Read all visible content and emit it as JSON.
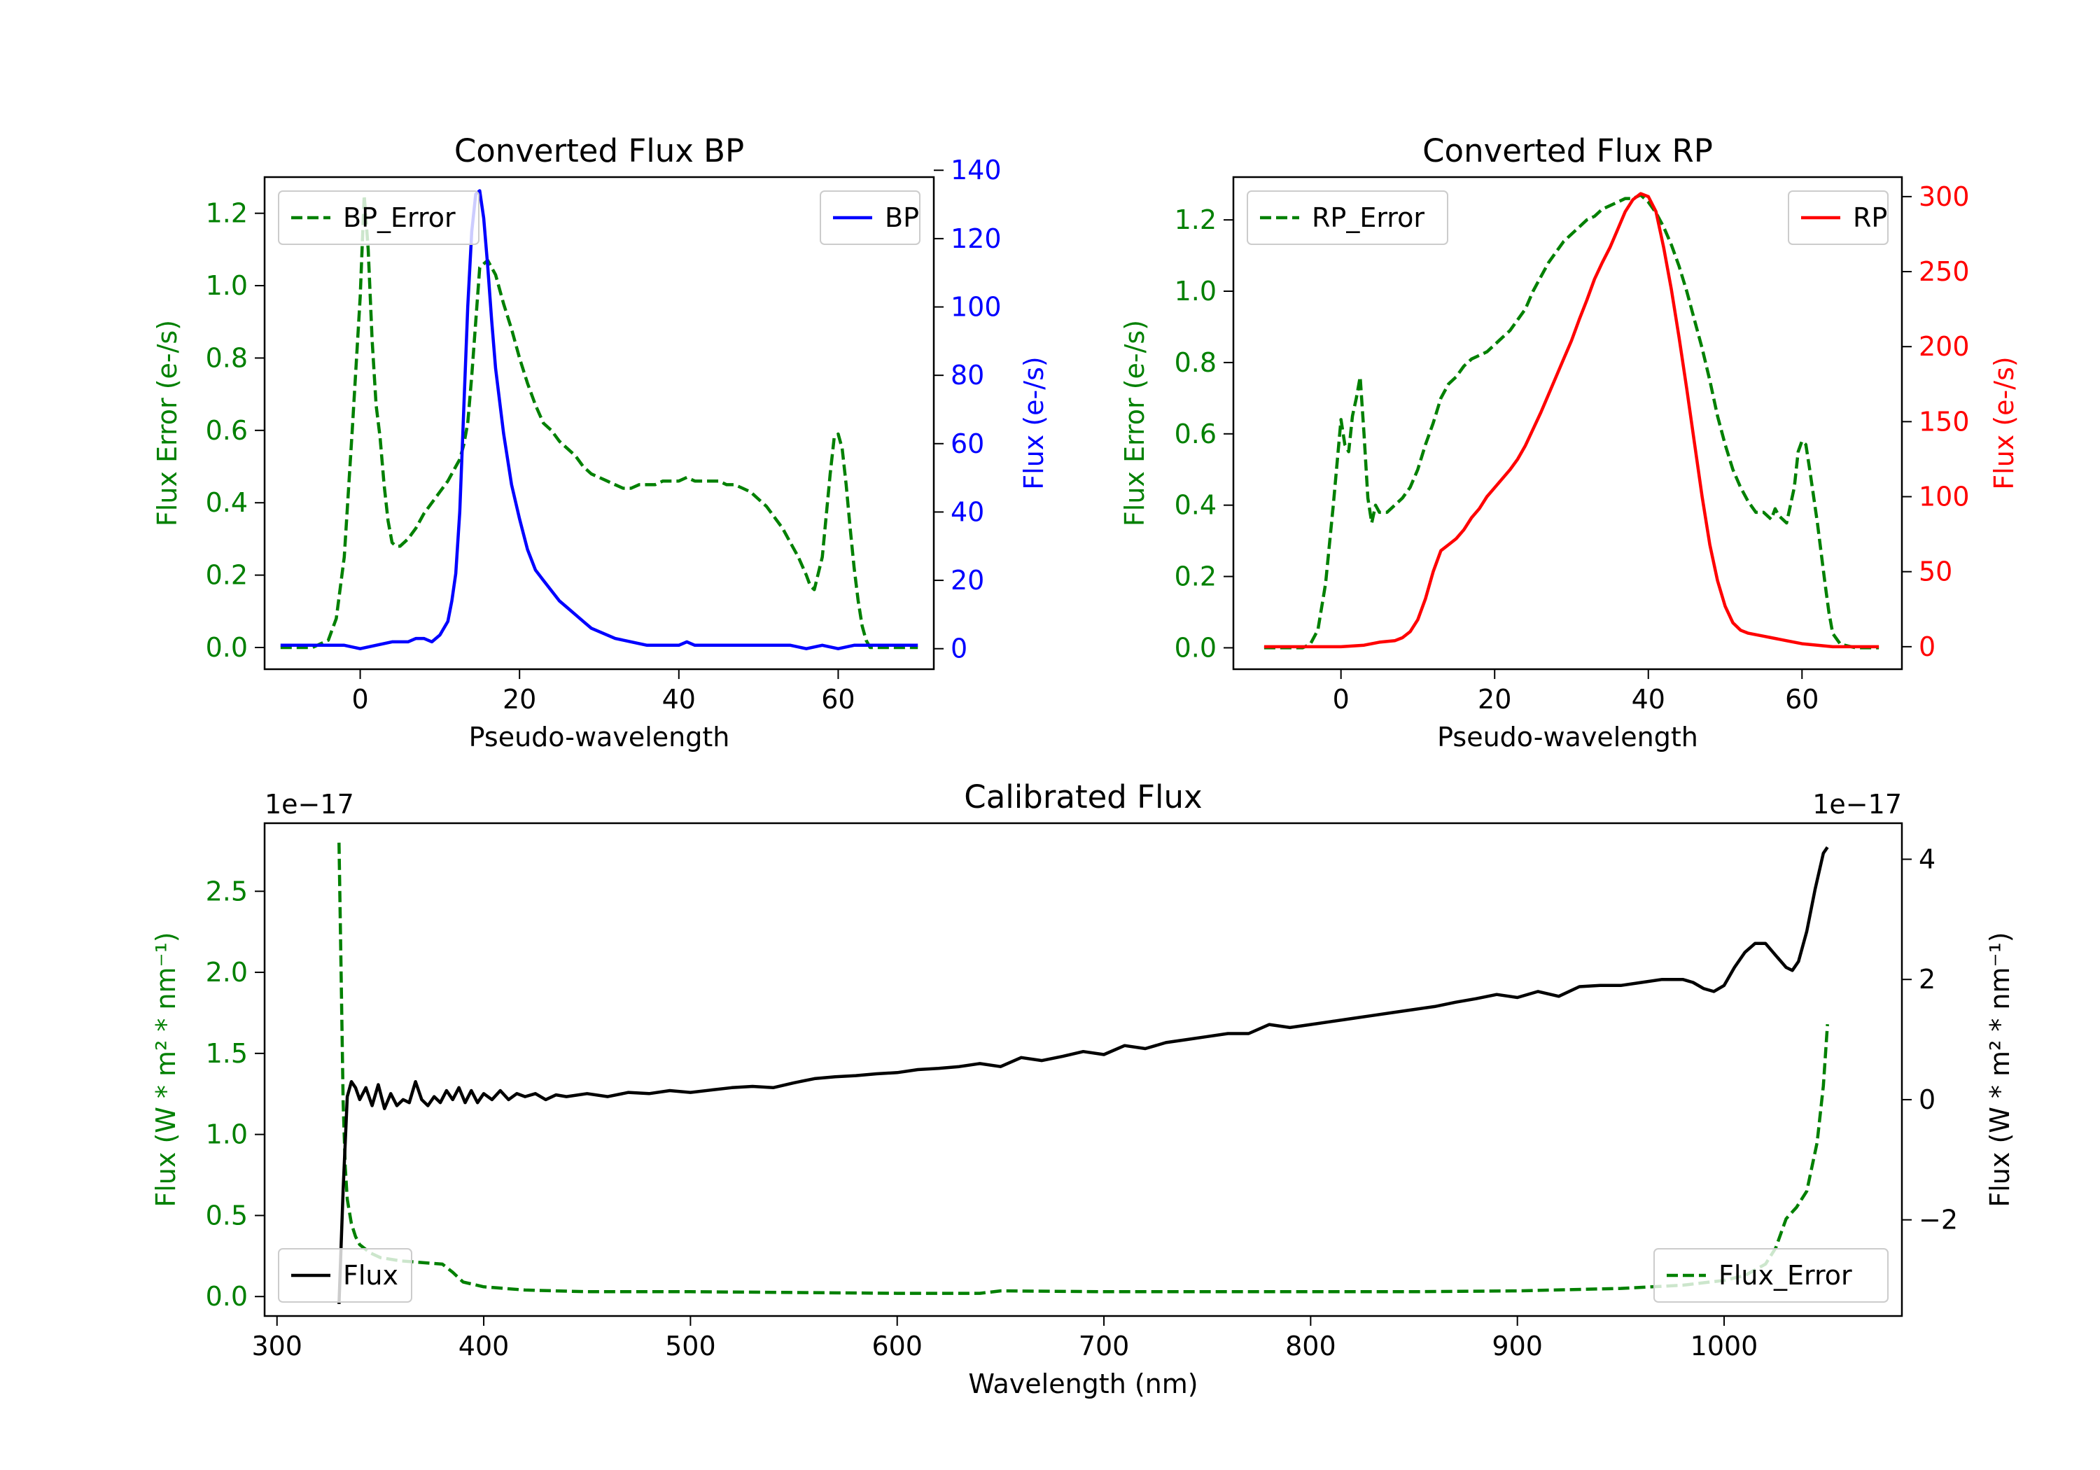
{
  "chart_data": [
    {
      "type": "line",
      "title": "Converted Flux BP",
      "xlabel": "Pseudo-wavelength",
      "ylabel": "Flux Error (e-/s)",
      "ylabel_right": "Flux (e-/s)",
      "xlim": [
        -12,
        72
      ],
      "ylim": [
        -0.06,
        1.3
      ],
      "ylim_right": [
        -6,
        138
      ],
      "xticks": [
        0,
        20,
        40,
        60
      ],
      "yticks": [
        0.0,
        0.2,
        0.4,
        0.6,
        0.8,
        1.0,
        1.2
      ],
      "yticks_right": [
        0,
        20,
        40,
        60,
        80,
        100,
        120,
        140
      ],
      "grid": false,
      "legend": [
        {
          "label": "BP_Error",
          "placement": "upper-left"
        },
        {
          "label": "BP",
          "placement": "upper-right"
        }
      ],
      "series": [
        {
          "name": "BP_Error",
          "axis": "left",
          "color": "#008000",
          "style": "dashed",
          "x": [
            -10,
            -6,
            -4,
            -3,
            -2,
            -1,
            0,
            0.5,
            1,
            1.5,
            2,
            2.5,
            3,
            3.5,
            4,
            4.5,
            5,
            6,
            7,
            8,
            9,
            10,
            11,
            12,
            12.5,
            13,
            13.5,
            14,
            14.5,
            15,
            16,
            17,
            18,
            19,
            20,
            21,
            22,
            23,
            24,
            25,
            26,
            27,
            28,
            29,
            30,
            31,
            32,
            33,
            34,
            35,
            36,
            37,
            38,
            39,
            40,
            41,
            42,
            43,
            44,
            45,
            46,
            47,
            48,
            49,
            50,
            51,
            52,
            53,
            54,
            55,
            56,
            56.5,
            57,
            58,
            59,
            59.5,
            60,
            60.5,
            61,
            61.5,
            62,
            62.5,
            63,
            63.5,
            64,
            65,
            66,
            68,
            70
          ],
          "y": [
            0.0,
            0.0,
            0.02,
            0.08,
            0.25,
            0.6,
            0.97,
            1.25,
            1.1,
            0.85,
            0.67,
            0.58,
            0.45,
            0.35,
            0.29,
            0.28,
            0.28,
            0.3,
            0.33,
            0.37,
            0.4,
            0.43,
            0.46,
            0.5,
            0.52,
            0.56,
            0.62,
            0.75,
            0.9,
            1.05,
            1.07,
            1.03,
            0.95,
            0.88,
            0.8,
            0.73,
            0.67,
            0.62,
            0.6,
            0.57,
            0.55,
            0.53,
            0.5,
            0.48,
            0.47,
            0.46,
            0.45,
            0.44,
            0.44,
            0.45,
            0.45,
            0.45,
            0.46,
            0.46,
            0.46,
            0.47,
            0.46,
            0.46,
            0.46,
            0.46,
            0.45,
            0.45,
            0.44,
            0.43,
            0.41,
            0.39,
            0.36,
            0.33,
            0.29,
            0.25,
            0.2,
            0.17,
            0.16,
            0.25,
            0.48,
            0.58,
            0.59,
            0.55,
            0.45,
            0.33,
            0.22,
            0.13,
            0.06,
            0.02,
            0.0,
            0.0,
            0.0,
            0.0,
            0.0
          ]
        },
        {
          "name": "BP",
          "axis": "right",
          "color": "#0000ff",
          "style": "solid",
          "x": [
            -10,
            -6,
            -2,
            0,
            2,
            4,
            6,
            7,
            8,
            9,
            10,
            11,
            11.5,
            12,
            12.5,
            13,
            13.5,
            14,
            14.5,
            15,
            15.5,
            16,
            16.5,
            17,
            18,
            19,
            20,
            21,
            22,
            23,
            24,
            25,
            26,
            27,
            28,
            29,
            30,
            31,
            32,
            34,
            36,
            38,
            40,
            41,
            42,
            44,
            46,
            48,
            50,
            52,
            54,
            56,
            58,
            60,
            62,
            64,
            66,
            68,
            70
          ],
          "y": [
            1,
            1,
            1,
            0,
            1,
            2,
            2,
            3,
            3,
            2,
            4,
            8,
            14,
            22,
            40,
            70,
            100,
            122,
            133,
            134,
            126,
            112,
            96,
            82,
            63,
            48,
            38,
            29,
            23,
            20,
            17,
            14,
            12,
            10,
            8,
            6,
            5,
            4,
            3,
            2,
            1,
            1,
            1,
            2,
            1,
            1,
            1,
            1,
            1,
            1,
            1,
            0,
            1,
            0,
            1,
            1,
            1,
            1,
            1
          ]
        }
      ]
    },
    {
      "type": "line",
      "title": "Converted Flux RP",
      "xlabel": "Pseudo-wavelength",
      "ylabel": "Flux Error (e-/s)",
      "ylabel_right": "Flux (e-/s)",
      "xlim": [
        -14,
        73
      ],
      "ylim": [
        -0.06,
        1.32
      ],
      "ylim_right": [
        -15,
        313
      ],
      "xticks": [
        0,
        20,
        40,
        60
      ],
      "yticks": [
        0.0,
        0.2,
        0.4,
        0.6,
        0.8,
        1.0,
        1.2
      ],
      "yticks_right": [
        0,
        50,
        100,
        150,
        200,
        250,
        300
      ],
      "grid": false,
      "legend": [
        {
          "label": "RP_Error",
          "placement": "upper-left"
        },
        {
          "label": "RP",
          "placement": "upper-right"
        }
      ],
      "series": [
        {
          "name": "RP_Error",
          "axis": "left",
          "color": "#008000",
          "style": "dashed",
          "x": [
            -10,
            -5,
            -4,
            -3,
            -2,
            -1,
            0,
            0.5,
            1,
            1.5,
            2,
            2.5,
            3,
            3.5,
            4,
            4.5,
            5,
            6,
            7,
            8,
            9,
            10,
            11,
            12,
            13,
            14,
            15,
            16,
            17,
            18,
            19,
            20,
            21,
            22,
            23,
            24,
            25,
            26,
            27,
            28,
            29,
            30,
            31,
            32,
            33,
            34,
            35,
            36,
            37,
            38,
            39,
            40,
            41,
            42,
            43,
            44,
            45,
            46,
            47,
            48,
            49,
            50,
            51,
            52,
            53,
            54,
            55,
            56,
            56.5,
            57,
            58,
            59,
            59.5,
            60,
            60.5,
            61,
            62,
            63,
            63.5,
            64,
            65,
            67,
            70
          ],
          "y": [
            0.0,
            0.0,
            0.01,
            0.05,
            0.18,
            0.4,
            0.64,
            0.57,
            0.55,
            0.65,
            0.7,
            0.76,
            0.6,
            0.42,
            0.35,
            0.4,
            0.38,
            0.38,
            0.4,
            0.42,
            0.45,
            0.5,
            0.57,
            0.63,
            0.7,
            0.74,
            0.76,
            0.79,
            0.81,
            0.82,
            0.83,
            0.85,
            0.87,
            0.89,
            0.92,
            0.95,
            1.0,
            1.04,
            1.08,
            1.11,
            1.14,
            1.16,
            1.18,
            1.2,
            1.21,
            1.23,
            1.24,
            1.25,
            1.26,
            1.26,
            1.27,
            1.25,
            1.22,
            1.18,
            1.13,
            1.07,
            1.0,
            0.92,
            0.84,
            0.75,
            0.65,
            0.57,
            0.5,
            0.45,
            0.41,
            0.38,
            0.38,
            0.36,
            0.39,
            0.37,
            0.35,
            0.45,
            0.55,
            0.58,
            0.57,
            0.5,
            0.35,
            0.18,
            0.1,
            0.04,
            0.01,
            0.0,
            0.0
          ]
        },
        {
          "name": "RP",
          "axis": "right",
          "color": "#ff0000",
          "style": "solid",
          "x": [
            -10,
            -5,
            0,
            3,
            5,
            7,
            8,
            9,
            10,
            11,
            12,
            13,
            14,
            15,
            16,
            17,
            18,
            19,
            20,
            21,
            22,
            23,
            24,
            25,
            26,
            27,
            28,
            29,
            30,
            31,
            32,
            33,
            34,
            35,
            36,
            37,
            38,
            39,
            40,
            41,
            42,
            43,
            44,
            45,
            46,
            47,
            48,
            49,
            50,
            51,
            52,
            53,
            54,
            55,
            56,
            58,
            60,
            62,
            64,
            66,
            68,
            70
          ],
          "y": [
            0,
            0,
            0,
            1,
            3,
            4,
            6,
            10,
            18,
            32,
            50,
            64,
            68,
            72,
            78,
            86,
            92,
            100,
            106,
            112,
            118,
            125,
            134,
            145,
            156,
            168,
            180,
            192,
            204,
            218,
            231,
            245,
            256,
            266,
            278,
            290,
            298,
            302,
            300,
            290,
            266,
            238,
            206,
            172,
            136,
            100,
            68,
            44,
            27,
            16,
            11,
            9,
            8,
            7,
            6,
            4,
            2,
            1,
            0,
            0,
            0,
            0
          ]
        }
      ]
    },
    {
      "type": "line",
      "title": "Calibrated Flux",
      "xlabel": "Wavelength (nm)",
      "ylabel": "Flux (W * m² * nm⁻¹)",
      "ylabel_right": "Flux (W * m² * nm⁻¹)",
      "offset_left": "1e−17",
      "offset_right": "1e−17",
      "xlim": [
        294,
        1086
      ],
      "ylim": [
        -0.12,
        2.92
      ],
      "ylim_right": [
        -3.6,
        4.6
      ],
      "xticks": [
        300,
        400,
        500,
        600,
        700,
        800,
        900,
        1000
      ],
      "yticks": [
        0.0,
        0.5,
        1.0,
        1.5,
        2.0,
        2.5
      ],
      "yticks_right": [
        -2,
        0,
        2,
        4
      ],
      "grid": false,
      "legend": [
        {
          "label": "Flux",
          "placement": "lower-left"
        },
        {
          "label": "Flux_Error",
          "placement": "lower-right"
        }
      ],
      "series": [
        {
          "name": "Flux_Error",
          "axis": "left",
          "color": "#008000",
          "style": "dashed",
          "x": [
            330,
            331,
            332,
            333,
            334,
            336,
            338,
            340,
            345,
            350,
            360,
            370,
            380,
            385,
            390,
            400,
            420,
            450,
            500,
            550,
            600,
            620,
            640,
            650,
            700,
            750,
            800,
            850,
            900,
            950,
            980,
            1000,
            1010,
            1020,
            1025,
            1030,
            1035,
            1040,
            1045,
            1048,
            1050
          ],
          "y": [
            2.8,
            2.0,
            1.2,
            0.8,
            0.6,
            0.45,
            0.37,
            0.32,
            0.27,
            0.24,
            0.22,
            0.21,
            0.2,
            0.15,
            0.09,
            0.06,
            0.04,
            0.03,
            0.03,
            0.025,
            0.02,
            0.02,
            0.02,
            0.035,
            0.03,
            0.03,
            0.03,
            0.03,
            0.035,
            0.05,
            0.07,
            0.1,
            0.13,
            0.2,
            0.3,
            0.48,
            0.55,
            0.65,
            0.95,
            1.3,
            1.68
          ]
        },
        {
          "name": "Flux",
          "axis": "right",
          "color": "#000000",
          "style": "solid",
          "x": [
            330,
            332,
            334,
            336,
            338,
            340,
            343,
            346,
            349,
            352,
            355,
            358,
            361,
            364,
            367,
            370,
            373,
            376,
            379,
            382,
            385,
            388,
            391,
            394,
            397,
            400,
            404,
            408,
            412,
            416,
            420,
            425,
            430,
            435,
            440,
            450,
            460,
            470,
            480,
            490,
            500,
            510,
            520,
            530,
            540,
            550,
            560,
            570,
            580,
            590,
            600,
            610,
            620,
            630,
            640,
            650,
            660,
            670,
            680,
            690,
            700,
            710,
            720,
            730,
            740,
            750,
            760,
            770,
            780,
            790,
            800,
            810,
            820,
            830,
            840,
            850,
            860,
            870,
            880,
            890,
            900,
            910,
            920,
            930,
            940,
            950,
            960,
            970,
            980,
            985,
            990,
            995,
            1000,
            1005,
            1010,
            1015,
            1020,
            1025,
            1030,
            1033,
            1036,
            1040,
            1044,
            1048,
            1050
          ],
          "y": [
            -3.4,
            -1.5,
            0.05,
            0.3,
            0.2,
            0.0,
            0.2,
            -0.1,
            0.25,
            -0.15,
            0.1,
            -0.1,
            0.0,
            -0.05,
            0.3,
            0.0,
            -0.1,
            0.05,
            -0.05,
            0.15,
            0.0,
            0.2,
            -0.05,
            0.15,
            -0.05,
            0.1,
            0.0,
            0.15,
            0.0,
            0.1,
            0.05,
            0.1,
            0.0,
            0.08,
            0.05,
            0.1,
            0.05,
            0.12,
            0.1,
            0.15,
            0.12,
            0.16,
            0.2,
            0.22,
            0.2,
            0.28,
            0.35,
            0.38,
            0.4,
            0.43,
            0.45,
            0.5,
            0.52,
            0.55,
            0.6,
            0.55,
            0.7,
            0.65,
            0.72,
            0.8,
            0.75,
            0.9,
            0.85,
            0.95,
            1.0,
            1.05,
            1.1,
            1.1,
            1.25,
            1.2,
            1.25,
            1.3,
            1.35,
            1.4,
            1.45,
            1.5,
            1.55,
            1.62,
            1.68,
            1.75,
            1.7,
            1.8,
            1.72,
            1.88,
            1.9,
            1.9,
            1.95,
            2.0,
            2.0,
            1.95,
            1.85,
            1.8,
            1.9,
            2.2,
            2.45,
            2.6,
            2.6,
            2.4,
            2.2,
            2.15,
            2.3,
            2.8,
            3.5,
            4.1,
            4.2
          ]
        }
      ]
    }
  ]
}
